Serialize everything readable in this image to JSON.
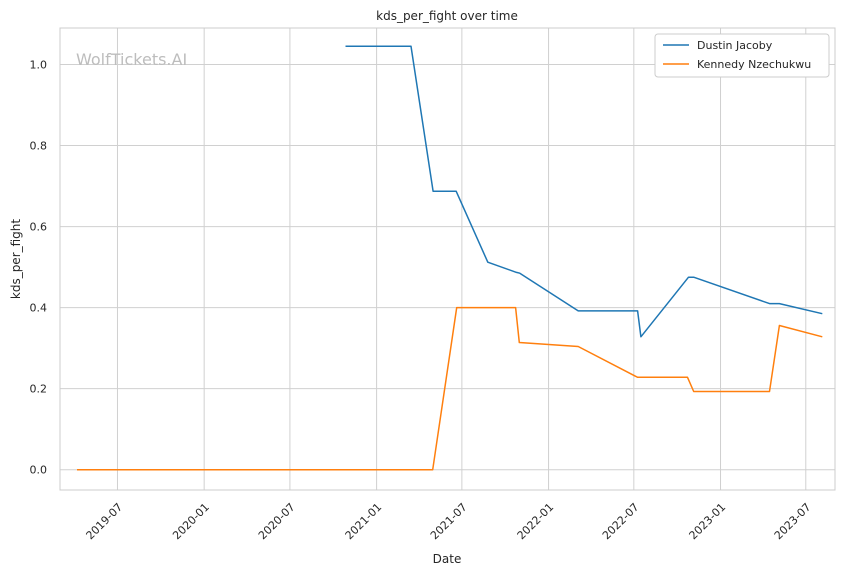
{
  "chart_data": {
    "type": "line",
    "title": "kds_per_fight over time",
    "xlabel": "Date",
    "ylabel": "kds_per_fight",
    "watermark": "WolfTickets.AI",
    "xlim": [
      "2019-03-01",
      "2023-09-01"
    ],
    "ylim": [
      -0.05,
      1.09
    ],
    "x_ticks": [
      "2019-07-01",
      "2020-01-01",
      "2020-07-01",
      "2021-01-01",
      "2021-07-01",
      "2022-01-01",
      "2022-07-01",
      "2023-01-01",
      "2023-07-01"
    ],
    "x_tick_labels": [
      "2019-07",
      "2020-01",
      "2020-07",
      "2021-01",
      "2021-07",
      "2022-01",
      "2022-07",
      "2023-01",
      "2023-07"
    ],
    "y_ticks": [
      0.0,
      0.2,
      0.4,
      0.6,
      0.8,
      1.0
    ],
    "y_tick_labels": [
      "0.0",
      "0.2",
      "0.4",
      "0.6",
      "0.8",
      "1.0"
    ],
    "grid": true,
    "legend_position": "top-right",
    "series": [
      {
        "name": "Dustin Jacoby",
        "color": "#1f77b4",
        "x": [
          "2020-10-27",
          "2021-03-15",
          "2021-05-01",
          "2021-06-19",
          "2021-08-25",
          "2021-10-25",
          "2021-11-01",
          "2022-03-05",
          "2022-07-09",
          "2022-07-16",
          "2022-10-25",
          "2022-11-05",
          "2023-04-15",
          "2023-05-06",
          "2023-08-05"
        ],
        "y": [
          1.045,
          1.045,
          0.687,
          0.687,
          0.512,
          0.487,
          0.485,
          0.392,
          0.392,
          0.328,
          0.475,
          0.475,
          0.41,
          0.41,
          0.385
        ]
      },
      {
        "name": "Kennedy Nzechukwu",
        "color": "#ff7f0e",
        "x": [
          "2019-04-06",
          "2021-04-30",
          "2021-06-20",
          "2021-10-23",
          "2021-10-31",
          "2022-03-05",
          "2022-07-09",
          "2022-10-23",
          "2022-11-05",
          "2023-04-15",
          "2023-05-06",
          "2023-08-05"
        ],
        "y": [
          0.0,
          0.0,
          0.4,
          0.4,
          0.314,
          0.304,
          0.228,
          0.228,
          0.193,
          0.193,
          0.356,
          0.328
        ]
      }
    ]
  }
}
